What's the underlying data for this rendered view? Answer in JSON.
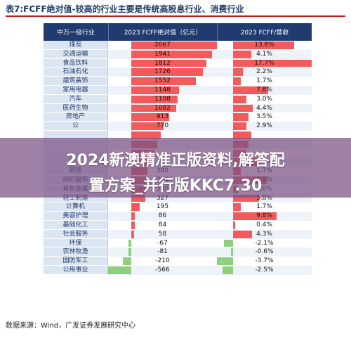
{
  "title": "表7:FCFF绝对值-较高的行业主要是传统高股息行业、消费行业",
  "headers": {
    "industry": "中万一级行业",
    "fcff": "2023 FCFF绝对值（亿元）",
    "ratio": "2023 FCFF/营收"
  },
  "rows": [
    {
      "industry": "煤炭",
      "fcff": "2067",
      "ratio": "13.8%",
      "fcff_value": 2067,
      "ratio_value": 13.8
    },
    {
      "industry": "交通运输",
      "fcff": "1941",
      "ratio": "4.1%",
      "fcff_value": 1941,
      "ratio_value": 4.1
    },
    {
      "industry": "食品饮料",
      "fcff": "1812",
      "ratio": "17.7%",
      "fcff_value": 1812,
      "ratio_value": 17.7
    },
    {
      "industry": "石油石化",
      "fcff": "1726",
      "ratio": "2.2%",
      "fcff_value": 1726,
      "ratio_value": 2.2
    },
    {
      "industry": "建筑装饰",
      "fcff": "1552",
      "ratio": "1.7%",
      "fcff_value": 1552,
      "ratio_value": 1.7
    },
    {
      "industry": "家用电器",
      "fcff": "1148",
      "ratio": "7.8%",
      "fcff_value": 1148,
      "ratio_value": 7.8
    },
    {
      "industry": "汽车",
      "fcff": "1108",
      "ratio": "3.0%",
      "fcff_value": 1108,
      "ratio_value": 3.0
    },
    {
      "industry": "医药生物",
      "fcff": "1082",
      "ratio": "4.4%",
      "fcff_value": 1082,
      "ratio_value": 4.4
    },
    {
      "industry": "房地产",
      "fcff": "913",
      "ratio": "3.5%",
      "fcff_value": 913,
      "ratio_value": 3.5
    },
    {
      "industry": "公",
      "fcff": "770",
      "ratio": "2.9%",
      "fcff_value": 770,
      "ratio_value": 2.9
    },
    {
      "industry": "",
      "fcff": "",
      "ratio": "",
      "fcff_value": 700,
      "ratio_value": 4.0
    },
    {
      "industry": "",
      "fcff": "",
      "ratio": "",
      "fcff_value": 620,
      "ratio_value": 3.5
    },
    {
      "industry": "",
      "fcff": "",
      "ratio": "",
      "fcff_value": 560,
      "ratio_value": 3.0
    },
    {
      "industry": "",
      "fcff": "475",
      "ratio": "6.1%",
      "fcff_value": 475,
      "ratio_value": 6.1
    },
    {
      "industry": "钢铁",
      "fcff": "380",
      "ratio": "1.7%",
      "fcff_value": 380,
      "ratio_value": 1.7
    },
    {
      "industry": "纺织服饰",
      "fcff": "354",
      "ratio": "7.5%",
      "fcff_value": 354,
      "ratio_value": 7.5
    },
    {
      "industry": "有色金属",
      "fcff": "330",
      "ratio": "1.0%",
      "fcff_value": 330,
      "ratio_value": 1.0
    },
    {
      "industry": "轻工制造",
      "fcff": "327",
      "ratio": "5.8%",
      "fcff_value": 327,
      "ratio_value": 5.8
    },
    {
      "industry": "计算机",
      "fcff": "195",
      "ratio": "1.7%",
      "fcff_value": 195,
      "ratio_value": 1.7
    },
    {
      "industry": "美容护理",
      "fcff": "86",
      "ratio": "9.8%",
      "fcff_value": 86,
      "ratio_value": 9.8
    },
    {
      "industry": "基础化工",
      "fcff": "84",
      "ratio": "0.4%",
      "fcff_value": 84,
      "ratio_value": 0.4
    },
    {
      "industry": "社会服务",
      "fcff": "58",
      "ratio": "4.3%",
      "fcff_value": 58,
      "ratio_value": 4.3
    },
    {
      "industry": "环保",
      "fcff": "-67",
      "ratio": "-2.1%",
      "fcff_value": -67,
      "ratio_value": -2.1
    },
    {
      "industry": "农林牧渔",
      "fcff": "-81",
      "ratio": "-0.6%",
      "fcff_value": -81,
      "ratio_value": -0.6
    },
    {
      "industry": "国防军工",
      "fcff": "-210",
      "ratio": "-3.7%",
      "fcff_value": -210,
      "ratio_value": -3.7
    },
    {
      "industry": "公用事业",
      "fcff": "-566",
      "ratio": "-2.5%",
      "fcff_value": -566,
      "ratio_value": -2.5
    }
  ],
  "scale": {
    "fcff_max": 2067,
    "fcff_min": -566,
    "ratio_max": 17.7,
    "ratio_min": -3.7
  },
  "colors": {
    "header_bg": "#1f3b6f",
    "positive_bar": "#f25b5b",
    "negative_bar": "#8fd07e",
    "title_rule": "#c51a1a"
  },
  "source": "数据来源：Wind，广发证券发展研究中心",
  "overlay": {
    "line1": "2024新澳精准正版资料,解答配",
    "line2": "置方案_并行版KKC7.30"
  }
}
